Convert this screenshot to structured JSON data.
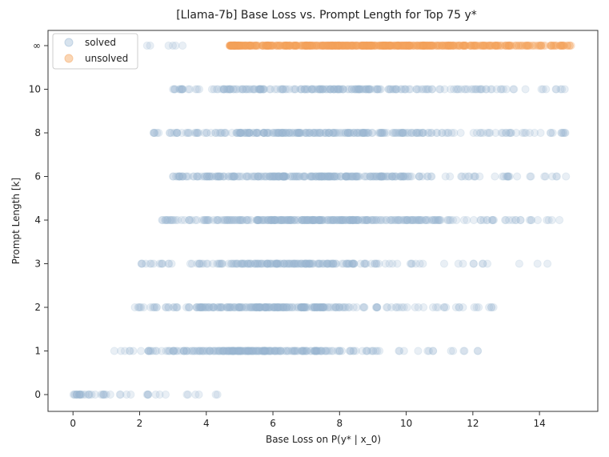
{
  "chart_data": {
    "type": "scatter",
    "title": "[Llama-7b] Base Loss vs. Prompt Length for Top 75 y*",
    "xlabel": "Base Loss on P(y* | x_0)",
    "ylabel": "Prompt Length [k]",
    "xlim": [
      -0.75,
      15.75
    ],
    "xticks": [
      0,
      2,
      4,
      6,
      8,
      10,
      12,
      14
    ],
    "y_categories": [
      "0",
      "1",
      "2",
      "3",
      "4",
      "6",
      "8",
      "10",
      "∞"
    ],
    "grid": false,
    "legend_position": "top-left",
    "series": [
      {
        "name": "solved",
        "color": "#9ab8d3",
        "marker_alpha": 0.22,
        "rows": [
          {
            "y": "0",
            "xmin": 0.0,
            "xmax": 4.5,
            "center": 0.5,
            "spread": 1.2,
            "count": 45
          },
          {
            "y": "1",
            "xmin": 1.2,
            "xmax": 12.2,
            "center": 5.5,
            "spread": 1.5,
            "count": 260
          },
          {
            "y": "2",
            "xmin": 1.8,
            "xmax": 12.9,
            "center": 5.8,
            "spread": 1.5,
            "count": 260
          },
          {
            "y": "3",
            "xmin": 2.0,
            "xmax": 14.7,
            "center": 6.3,
            "spread": 1.6,
            "count": 200
          },
          {
            "y": "4",
            "xmin": 2.6,
            "xmax": 14.7,
            "center": 7.0,
            "spread": 2.0,
            "count": 330
          },
          {
            "y": "6",
            "xmin": 3.0,
            "xmax": 14.9,
            "center": 7.0,
            "spread": 2.0,
            "count": 300
          },
          {
            "y": "8",
            "xmin": 2.4,
            "xmax": 14.9,
            "center": 7.2,
            "spread": 2.3,
            "count": 280
          },
          {
            "y": "10",
            "xmin": 3.0,
            "xmax": 14.8,
            "center": 7.5,
            "spread": 2.5,
            "count": 230
          },
          {
            "y": "∞",
            "xmin": 2.0,
            "xmax": 3.5,
            "center": 2.5,
            "spread": 0.8,
            "count": 6
          }
        ]
      },
      {
        "name": "unsolved",
        "color": "#f5a35c",
        "marker_alpha": 0.25,
        "rows": [
          {
            "y": "∞",
            "xmin": 4.7,
            "xmax": 15.0,
            "center": 8.5,
            "spread": 3.0,
            "count": 650
          }
        ]
      }
    ]
  }
}
